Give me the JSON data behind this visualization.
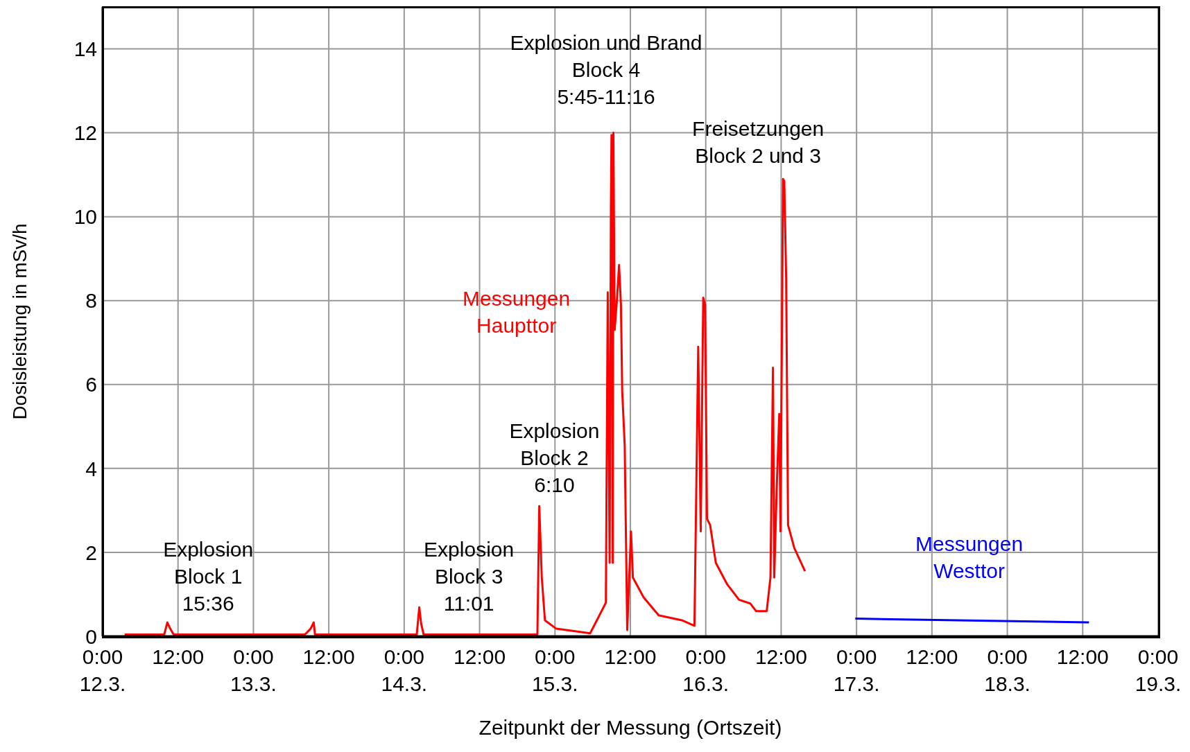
{
  "chart_data": {
    "type": "line",
    "xlabel": "Zeitpunkt der Messung (Ortszeit)",
    "ylabel": "Dosisleistung in mSv/h",
    "xlim": [
      "--03-12T00:00",
      "--03-19T00:00"
    ],
    "ylim": [
      0,
      15
    ],
    "yticks": [
      0,
      2,
      4,
      6,
      8,
      10,
      12,
      14
    ],
    "xticks": [
      {
        "value": "--03-12T00:00",
        "label": "0:00\n12.3."
      },
      {
        "value": "--03-12T12:00",
        "label": "12:00"
      },
      {
        "value": "--03-13T00:00",
        "label": "0:00\n13.3."
      },
      {
        "value": "--03-13T12:00",
        "label": "12:00"
      },
      {
        "value": "--03-14T00:00",
        "label": "0:00\n14.3."
      },
      {
        "value": "--03-14T12:00",
        "label": "12:00"
      },
      {
        "value": "--03-15T00:00",
        "label": "0:00\n15.3."
      },
      {
        "value": "--03-15T12:00",
        "label": "12:00"
      },
      {
        "value": "--03-16T00:00",
        "label": "0:00\n16.3."
      },
      {
        "value": "--03-16T12:00",
        "label": "12:00"
      },
      {
        "value": "--03-17T00:00",
        "label": "0:00\n17.3."
      },
      {
        "value": "--03-17T12:00",
        "label": "12:00"
      },
      {
        "value": "--03-18T00:00",
        "label": "0:00\n18.3."
      },
      {
        "value": "--03-18T12:00",
        "label": "12:00"
      },
      {
        "value": "--03-19T00:00",
        "label": "0:00\n19.3."
      }
    ],
    "grid": true,
    "marker": "none",
    "line_style": "solid",
    "series": [
      {
        "name": "Messungen\nHaupttor",
        "color": "#ff0000",
        "x": [
          "--03-12T03:30",
          "--03-12T09:48",
          "--03-12T10:18",
          "--03-12T10:42",
          "--03-12T11:18",
          "--03-13T08:12",
          "--03-13T09:06",
          "--03-13T09:36",
          "--03-13T09:48",
          "--03-14T02:00",
          "--03-14T02:24",
          "--03-14T02:42",
          "--03-14T03:06",
          "--03-14T21:12",
          "--03-14T21:30",
          "--03-14T21:54",
          "--03-14T22:24",
          "--03-15T00:12",
          "--03-15T05:36",
          "--03-15T08:06",
          "--03-15T08:24",
          "--03-15T08:42",
          "--03-15T08:54",
          "--03-15T09:00",
          "--03-15T09:12",
          "--03-15T09:18",
          "--03-15T09:30",
          "--03-15T09:54",
          "--03-15T10:12",
          "--03-15T10:30",
          "--03-15T10:42",
          "--03-15T11:06",
          "--03-15T11:30",
          "--03-15T12:06",
          "--03-15T12:24",
          "--03-15T14:06",
          "--03-15T16:30",
          "--03-15T20:12",
          "--03-15T22:12",
          "--03-15T22:48",
          "--03-15T23:12",
          "--03-15T23:36",
          "--03-15T23:54",
          "--03-16T00:12",
          "--03-16T00:42",
          "--03-16T01:36",
          "--03-16T03:24",
          "--03-16T05:18",
          "--03-16T07:06",
          "--03-16T08:00",
          "--03-16T09:42",
          "--03-16T10:18",
          "--03-16T10:42",
          "--03-16T10:54",
          "--03-16T11:18",
          "--03-16T11:42",
          "--03-16T11:54",
          "--03-16T12:18",
          "--03-16T12:30",
          "--03-16T12:48",
          "--03-16T13:06",
          "--03-16T14:06",
          "--03-16T15:48"
        ],
        "values": [
          0.04,
          0.04,
          0.33,
          0.2,
          0.04,
          0.04,
          0.18,
          0.33,
          0.04,
          0.04,
          0.69,
          0.3,
          0.04,
          0.04,
          3.1,
          1.4,
          0.38,
          0.18,
          0.07,
          0.8,
          8.2,
          1.75,
          10.2,
          11.95,
          1.75,
          12,
          7.3,
          8.1,
          8.85,
          7.9,
          5.85,
          4.55,
          0.15,
          2.5,
          1.4,
          0.93,
          0.5,
          0.38,
          0.25,
          6.9,
          2.5,
          8.07,
          7.9,
          2.8,
          2.65,
          1.75,
          1.24,
          0.87,
          0.78,
          0.6,
          0.6,
          1.4,
          6.4,
          1.4,
          3.55,
          5.3,
          2.5,
          10.9,
          10.85,
          8.5,
          2.65,
          2.1,
          1.55
        ]
      },
      {
        "name": "Messungen\nWesttor",
        "color": "#0000ff",
        "x": [
          "--03-16T23:48",
          "--03-18T13:00"
        ],
        "values": [
          0.42,
          0.33
        ]
      }
    ],
    "annotations": [
      "Explosion\nBlock 1\n15:36",
      "Explosion\nBlock 3\n11:01",
      "Explosion\nBlock 2\n6:10",
      "Explosion und Brand\nBlock 4\n5:45-11:16",
      "Freisetzungen\nBlock 2 und 3"
    ]
  }
}
